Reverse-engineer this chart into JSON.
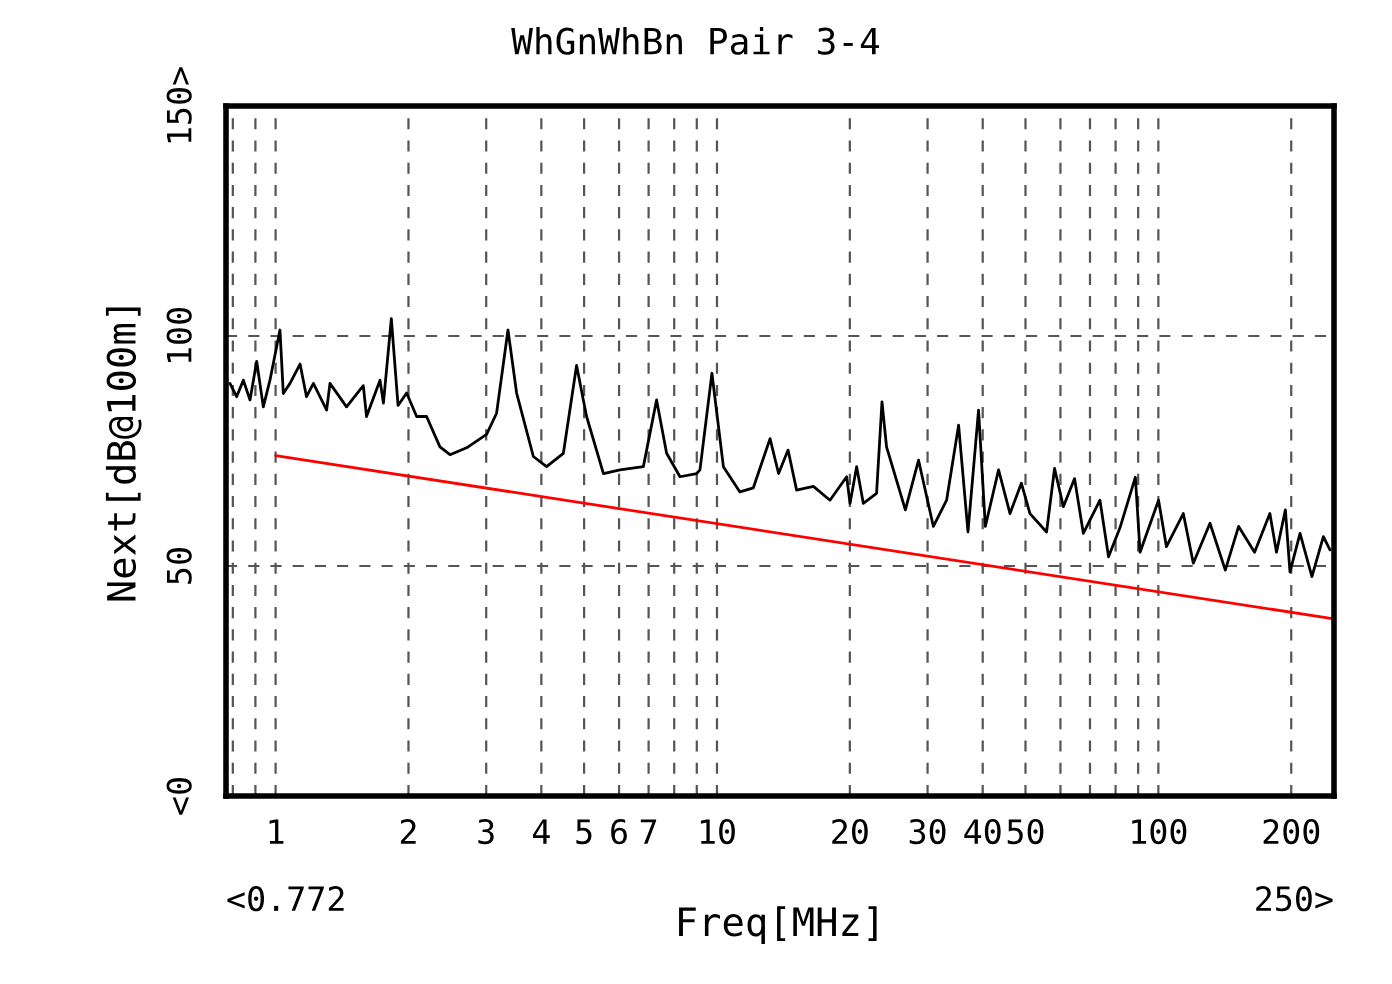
{
  "chart_data": {
    "type": "line",
    "title": "WhGnWhBn Pair 3-4",
    "xlabel": "Freq[MHz]",
    "ylabel": "Next[dB@100m]",
    "log": "x",
    "grid": true,
    "line_style": "solid",
    "marker": "none",
    "xlim": [
      0.772,
      250
    ],
    "ylim": [
      0,
      150
    ],
    "annotations": [
      "<0.772",
      "250>"
    ],
    "xticks": [
      {
        "value": 0.8,
        "label": null
      },
      {
        "value": 0.9,
        "label": null
      },
      1,
      2,
      3,
      4,
      5,
      6,
      7,
      {
        "value": 8,
        "label": null
      },
      {
        "value": 9,
        "label": null
      },
      10,
      20,
      30,
      40,
      50,
      {
        "value": 60,
        "label": null
      },
      {
        "value": 70,
        "label": null
      },
      {
        "value": 80,
        "label": null
      },
      {
        "value": 90,
        "label": null
      },
      100,
      200
    ],
    "yticks": [
      {
        "value": 0,
        "label": "<0"
      },
      50,
      100,
      {
        "value": 150,
        "label": "150>"
      }
    ],
    "series": [
      {
        "color": "#000000",
        "x": [
          0.788,
          0.816,
          0.845,
          0.875,
          0.906,
          0.938,
          0.971,
          1.023,
          1.041,
          1.078,
          1.136,
          1.175,
          1.218,
          1.305,
          1.328,
          1.448,
          1.58,
          1.607,
          1.724,
          1.755,
          1.829,
          1.894,
          1.981,
          2.087,
          2.198,
          2.357,
          2.484,
          2.709,
          3.006,
          3.167,
          3.361,
          3.516,
          3.837,
          4.111,
          4.487,
          4.807,
          5.065,
          5.53,
          6.029,
          6.811,
          7.297,
          7.689,
          8.245,
          8.992,
          9.15,
          9.74,
          10.34,
          11.27,
          12.09,
          13.19,
          13.79,
          14.49,
          15.15,
          16.54,
          18.03,
          19.67,
          20.02,
          20.72,
          21.46,
          22.99,
          23.65,
          24.22,
          26.72,
          28.62,
          30.92,
          33.13,
          35.27,
          37.04,
          39.14,
          40.55,
          43.45,
          46.12,
          48.93,
          51.18,
          55.81,
          58.19,
          60.92,
          64.59,
          67.61,
          73.73,
          77.11,
          81.85,
          88.7,
          90.9,
          100.1,
          104.3,
          113.9,
          120.0,
          130.9,
          141.8,
          152.0,
          165.2,
          178.9,
          185.2,
          194.0,
          198.7,
          209.4,
          222.8,
          236.5,
          244.8
        ],
        "values": [
          89.7,
          86.8,
          90.4,
          86.1,
          94.5,
          84.6,
          90.4,
          101.3,
          87.5,
          89.7,
          93.9,
          86.8,
          89.7,
          83.9,
          89.7,
          84.6,
          89.2,
          82.5,
          90.4,
          85.4,
          103.8,
          84.9,
          87.6,
          82.5,
          82.5,
          75.9,
          74.2,
          75.7,
          78.6,
          83.2,
          101.3,
          87.6,
          73.8,
          71.6,
          74.5,
          93.6,
          82.5,
          70.1,
          70.9,
          71.6,
          86.1,
          74.5,
          69.4,
          70.1,
          70.9,
          91.9,
          71.6,
          66.1,
          67.0,
          77.7,
          70.1,
          75.2,
          66.5,
          67.3,
          64.3,
          69.4,
          63.6,
          71.6,
          63.6,
          65.8,
          85.7,
          75.9,
          62.2,
          73.0,
          58.6,
          64.3,
          80.6,
          57.4,
          83.9,
          58.6,
          70.9,
          61.4,
          68.0,
          61.4,
          57.4,
          71.2,
          62.9,
          69.0,
          57.1,
          64.3,
          52.0,
          58.3,
          69.3,
          53.0,
          64.3,
          54.2,
          61.4,
          50.6,
          59.3,
          49.1,
          58.6,
          53.0,
          61.4,
          53.0,
          62.2,
          48.7,
          57.1,
          47.7,
          56.4,
          53.5
        ]
      },
      {
        "color": "#ff0000",
        "x": [
          1,
          250
        ],
        "values": [
          74,
          38.5
        ]
      }
    ]
  }
}
